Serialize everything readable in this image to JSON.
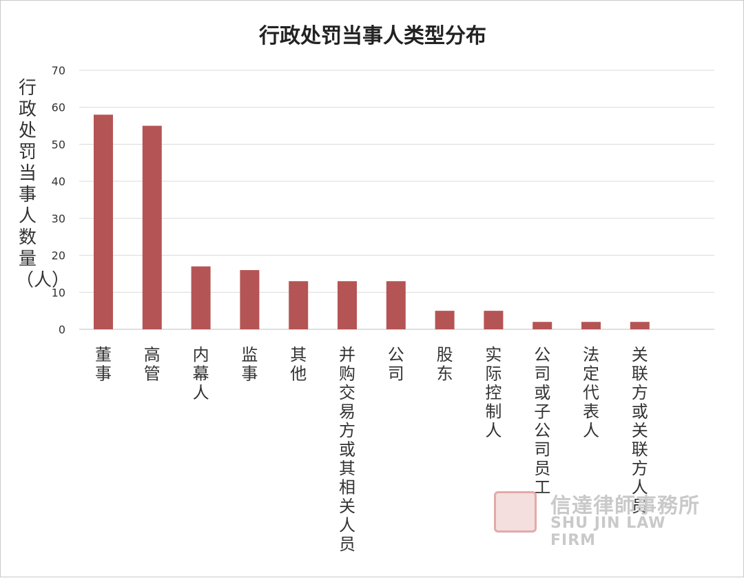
{
  "chart_data": {
    "type": "bar",
    "title": "行政处罚当事人类型分布",
    "ylabel": "行政处罚当事人数量（人）",
    "xlabel": "",
    "categories": [
      "董事",
      "高管",
      "内幕人",
      "监事",
      "其他",
      "并购交易方或其相关人员",
      "公司",
      "股东",
      "实际控制人",
      "公司或子公司员工",
      "法定代表人",
      "关联方或关联方人员"
    ],
    "values": [
      58,
      55,
      17,
      16,
      13,
      13,
      13,
      5,
      5,
      2,
      2,
      2
    ],
    "ylim": [
      0,
      70
    ],
    "yticks": [
      0,
      10,
      20,
      30,
      40,
      50,
      60,
      70
    ],
    "grid": true,
    "legend": "none",
    "bar_color": "#b55454",
    "grid_color": "#d9d9d9"
  },
  "watermark": {
    "cn": "信達律師事務所",
    "en": "SHU JIN LAW FIRM"
  }
}
